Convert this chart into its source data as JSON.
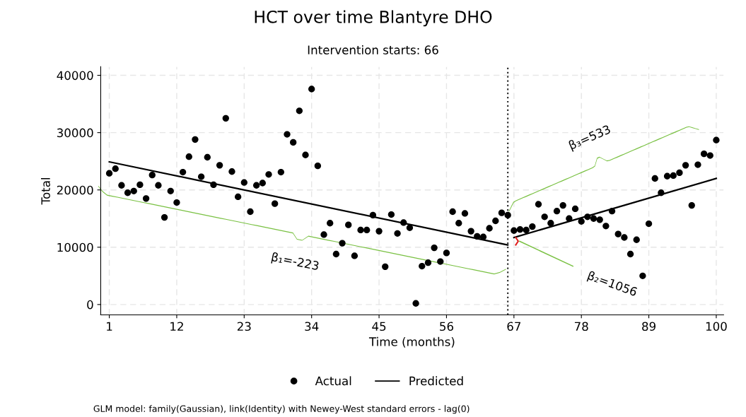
{
  "chart_data": {
    "type": "scatter",
    "title": "HCT over time Blantyre DHO",
    "subtitle": "Intervention starts: 66",
    "xlabel": "Time (months)",
    "ylabel": "Total",
    "x": [
      1,
      2,
      3,
      4,
      5,
      6,
      7,
      8,
      9,
      10,
      11,
      12,
      13,
      14,
      15,
      16,
      17,
      18,
      19,
      20,
      21,
      22,
      23,
      24,
      25,
      26,
      27,
      28,
      29,
      30,
      31,
      32,
      33,
      34,
      35,
      36,
      37,
      38,
      39,
      40,
      41,
      42,
      43,
      44,
      45,
      46,
      47,
      48,
      49,
      50,
      51,
      52,
      53,
      54,
      55,
      56,
      57,
      58,
      59,
      60,
      61,
      62,
      63,
      64,
      65,
      66,
      67,
      68,
      69,
      70,
      71,
      72,
      73,
      74,
      75,
      76,
      77,
      78,
      79,
      80,
      81,
      82,
      83,
      84,
      85,
      86,
      87,
      88,
      89,
      90,
      91,
      92,
      93,
      94,
      95,
      96,
      97,
      98,
      99,
      100
    ],
    "series": [
      {
        "name": "Actual",
        "color": "#000000",
        "marker": "circle",
        "values": [
          22900,
          23700,
          20800,
          19500,
          19800,
          20900,
          18500,
          22600,
          20800,
          15200,
          19800,
          17800,
          23100,
          25800,
          28800,
          22300,
          25700,
          20900,
          24300,
          32500,
          23200,
          18800,
          21300,
          16200,
          20800,
          21200,
          22700,
          17600,
          23100,
          29700,
          28300,
          33800,
          26100,
          37600,
          24200,
          12200,
          14200,
          8800,
          10700,
          13900,
          8500,
          13000,
          13000,
          15600,
          12800,
          6600,
          15700,
          12400,
          14300,
          13400,
          200,
          6700,
          7300,
          9900,
          7500,
          9000,
          16200,
          14200,
          15900,
          12800,
          11900,
          11800,
          13300,
          14600,
          16000,
          15600,
          12900,
          13100,
          13000,
          13600,
          17500,
          15300,
          14200,
          16300,
          17300,
          15000,
          16700,
          14500,
          15300,
          15000,
          14800,
          13700,
          16300,
          12300,
          11700,
          8800,
          11300,
          5000,
          14100,
          22000,
          19500,
          22400,
          22500,
          23000,
          24300,
          17300,
          24400,
          26300,
          26000,
          28700
        ]
      },
      {
        "name": "Predicted",
        "type": "line",
        "color": "#000000",
        "marker": "none",
        "line_style": "solid",
        "x": [
          1,
          66,
          66.5,
          67,
          100
        ],
        "values": [
          24900,
          10400,
          null,
          11700,
          22000
        ]
      }
    ],
    "xlim": [
      -0.4,
      101.2
    ],
    "ylim": [
      -1800,
      41500
    ],
    "xticks": [
      1,
      12,
      23,
      34,
      45,
      56,
      67,
      78,
      89,
      100
    ],
    "yticks": [
      0,
      10000,
      20000,
      30000,
      40000
    ],
    "ref_lines": [
      {
        "axis": "x",
        "value": 66,
        "color": "#333333",
        "line_style": "dotted"
      }
    ],
    "grid": true,
    "legend": "bottom",
    "annotations": [
      "β₁=-223",
      "β₂=1056",
      "β₃=533",
      "GLM model: family(Gaussian), link(Identity) with Newey-West standard errors - lag(0)"
    ]
  }
}
